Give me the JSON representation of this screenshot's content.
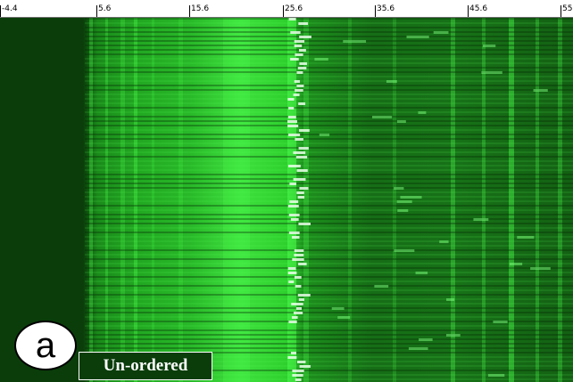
{
  "ruler": {
    "ticks": [
      "-4.4",
      "5.6",
      "15.6",
      "25.6",
      "35.6",
      "45.6",
      "55"
    ]
  },
  "panel_letter": "a",
  "status_label": "Un-ordered",
  "colors": {
    "background": "#0a3d0a",
    "band": "#2bd62b",
    "highlight": "#eaffea"
  }
}
